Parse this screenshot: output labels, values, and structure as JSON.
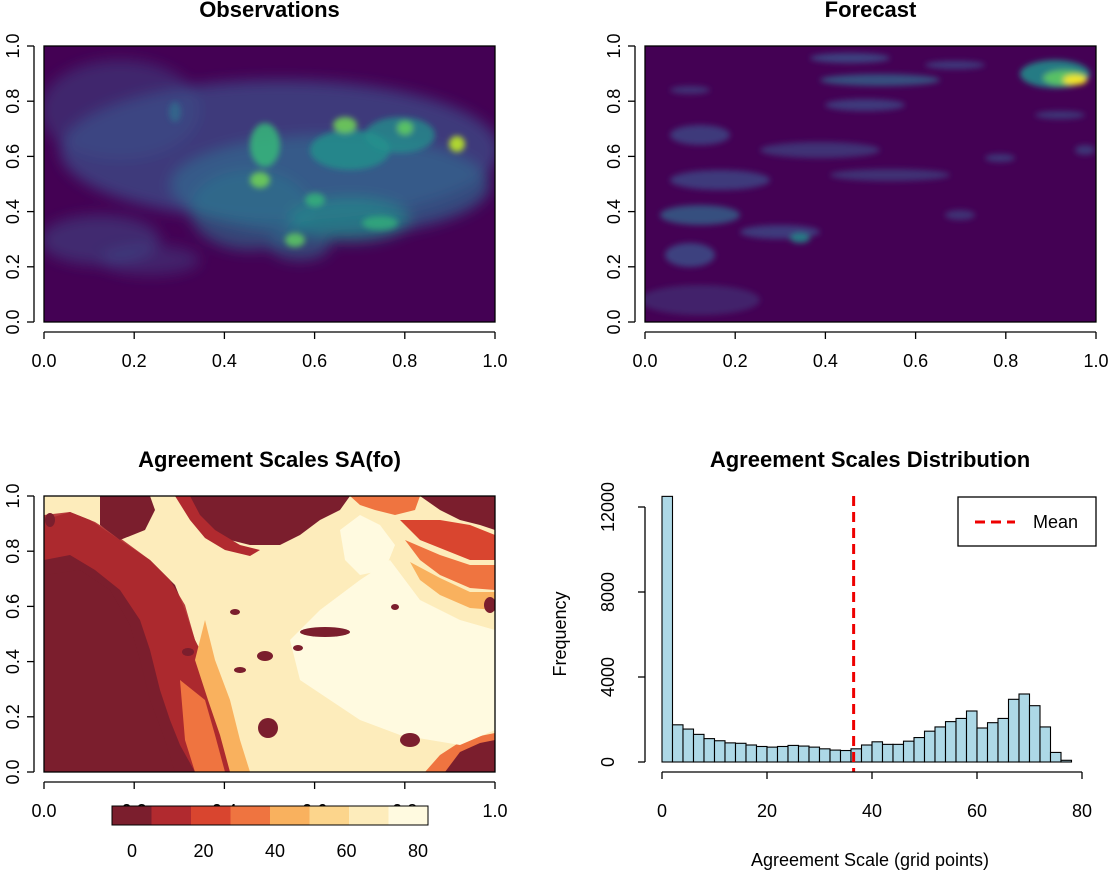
{
  "chart_data": [
    {
      "type": "heatmap",
      "id": "observations",
      "title": "Observations",
      "xlim": [
        0,
        1
      ],
      "ylim": [
        0,
        1
      ],
      "x_ticks": [
        "0.0",
        "0.2",
        "0.4",
        "0.6",
        "0.8",
        "1.0"
      ],
      "y_ticks": [
        "0.0",
        "0.2",
        "0.4",
        "0.6",
        "0.8",
        "1.0"
      ],
      "colormap": "viridis",
      "low_color": "#440154",
      "high_color": "#fde725",
      "intensity_description": "hotspots near x 0.47-0.93, y 0.45-0.72; low values below y 0.2"
    },
    {
      "type": "heatmap",
      "id": "forecast",
      "title": "Forecast",
      "xlim": [
        0,
        1
      ],
      "ylim": [
        0,
        1
      ],
      "x_ticks": [
        "0.0",
        "0.2",
        "0.4",
        "0.6",
        "0.8",
        "1.0"
      ],
      "y_ticks": [
        "0.0",
        "0.2",
        "0.4",
        "0.6",
        "0.8",
        "1.0"
      ],
      "colormap": "viridis",
      "low_color": "#440154",
      "high_color": "#fde725"
    },
    {
      "type": "heatmap",
      "id": "agreement-scales",
      "title": "Agreement Scales SA(fo)",
      "xlim": [
        0,
        1
      ],
      "ylim": [
        0,
        1
      ],
      "x_ticks": [
        "0.0",
        "0.2",
        "0.4",
        "0.6",
        "0.8",
        "1.0"
      ],
      "y_ticks": [
        "0.0",
        "0.2",
        "0.4",
        "0.6",
        "0.8",
        "1.0"
      ],
      "colorbar": {
        "range": [
          0,
          80
        ],
        "ticks": [
          "0",
          "20",
          "40",
          "60",
          "80"
        ],
        "colors": [
          "#7b1e2d",
          "#b12a2f",
          "#d9452f",
          "#ef7440",
          "#f9b15e",
          "#fcd58c",
          "#fdecbb",
          "#fffae0"
        ]
      }
    },
    {
      "type": "bar",
      "id": "agreement-histogram",
      "title": "Agreement Scales Distribution",
      "xlabel": "Agreement Scale (grid points)",
      "ylabel": "Frequency",
      "xlim": [
        0,
        80
      ],
      "ylim": [
        0,
        12000
      ],
      "x_ticks": [
        "0",
        "20",
        "40",
        "60",
        "80"
      ],
      "y_ticks": [
        "0",
        "4000",
        "8000",
        "12000"
      ],
      "bin_width": 2,
      "bin_starts": [
        0,
        2,
        4,
        6,
        8,
        10,
        12,
        14,
        16,
        18,
        20,
        22,
        24,
        26,
        28,
        30,
        32,
        34,
        36,
        38,
        40,
        42,
        44,
        46,
        48,
        50,
        52,
        54,
        56,
        58,
        60,
        62,
        64,
        66,
        68,
        70,
        72,
        74,
        76
      ],
      "values": [
        12500,
        1750,
        1550,
        1300,
        1100,
        1000,
        900,
        880,
        800,
        730,
        700,
        730,
        780,
        750,
        700,
        620,
        560,
        540,
        620,
        800,
        950,
        830,
        830,
        980,
        1150,
        1450,
        1650,
        1900,
        2050,
        2400,
        1600,
        1850,
        2050,
        2950,
        3200,
        2650,
        1650,
        450,
        80
      ],
      "bar_color": "#add8e6",
      "mean": 36.5,
      "mean_label": "Mean",
      "mean_color": "#ee0000"
    }
  ]
}
